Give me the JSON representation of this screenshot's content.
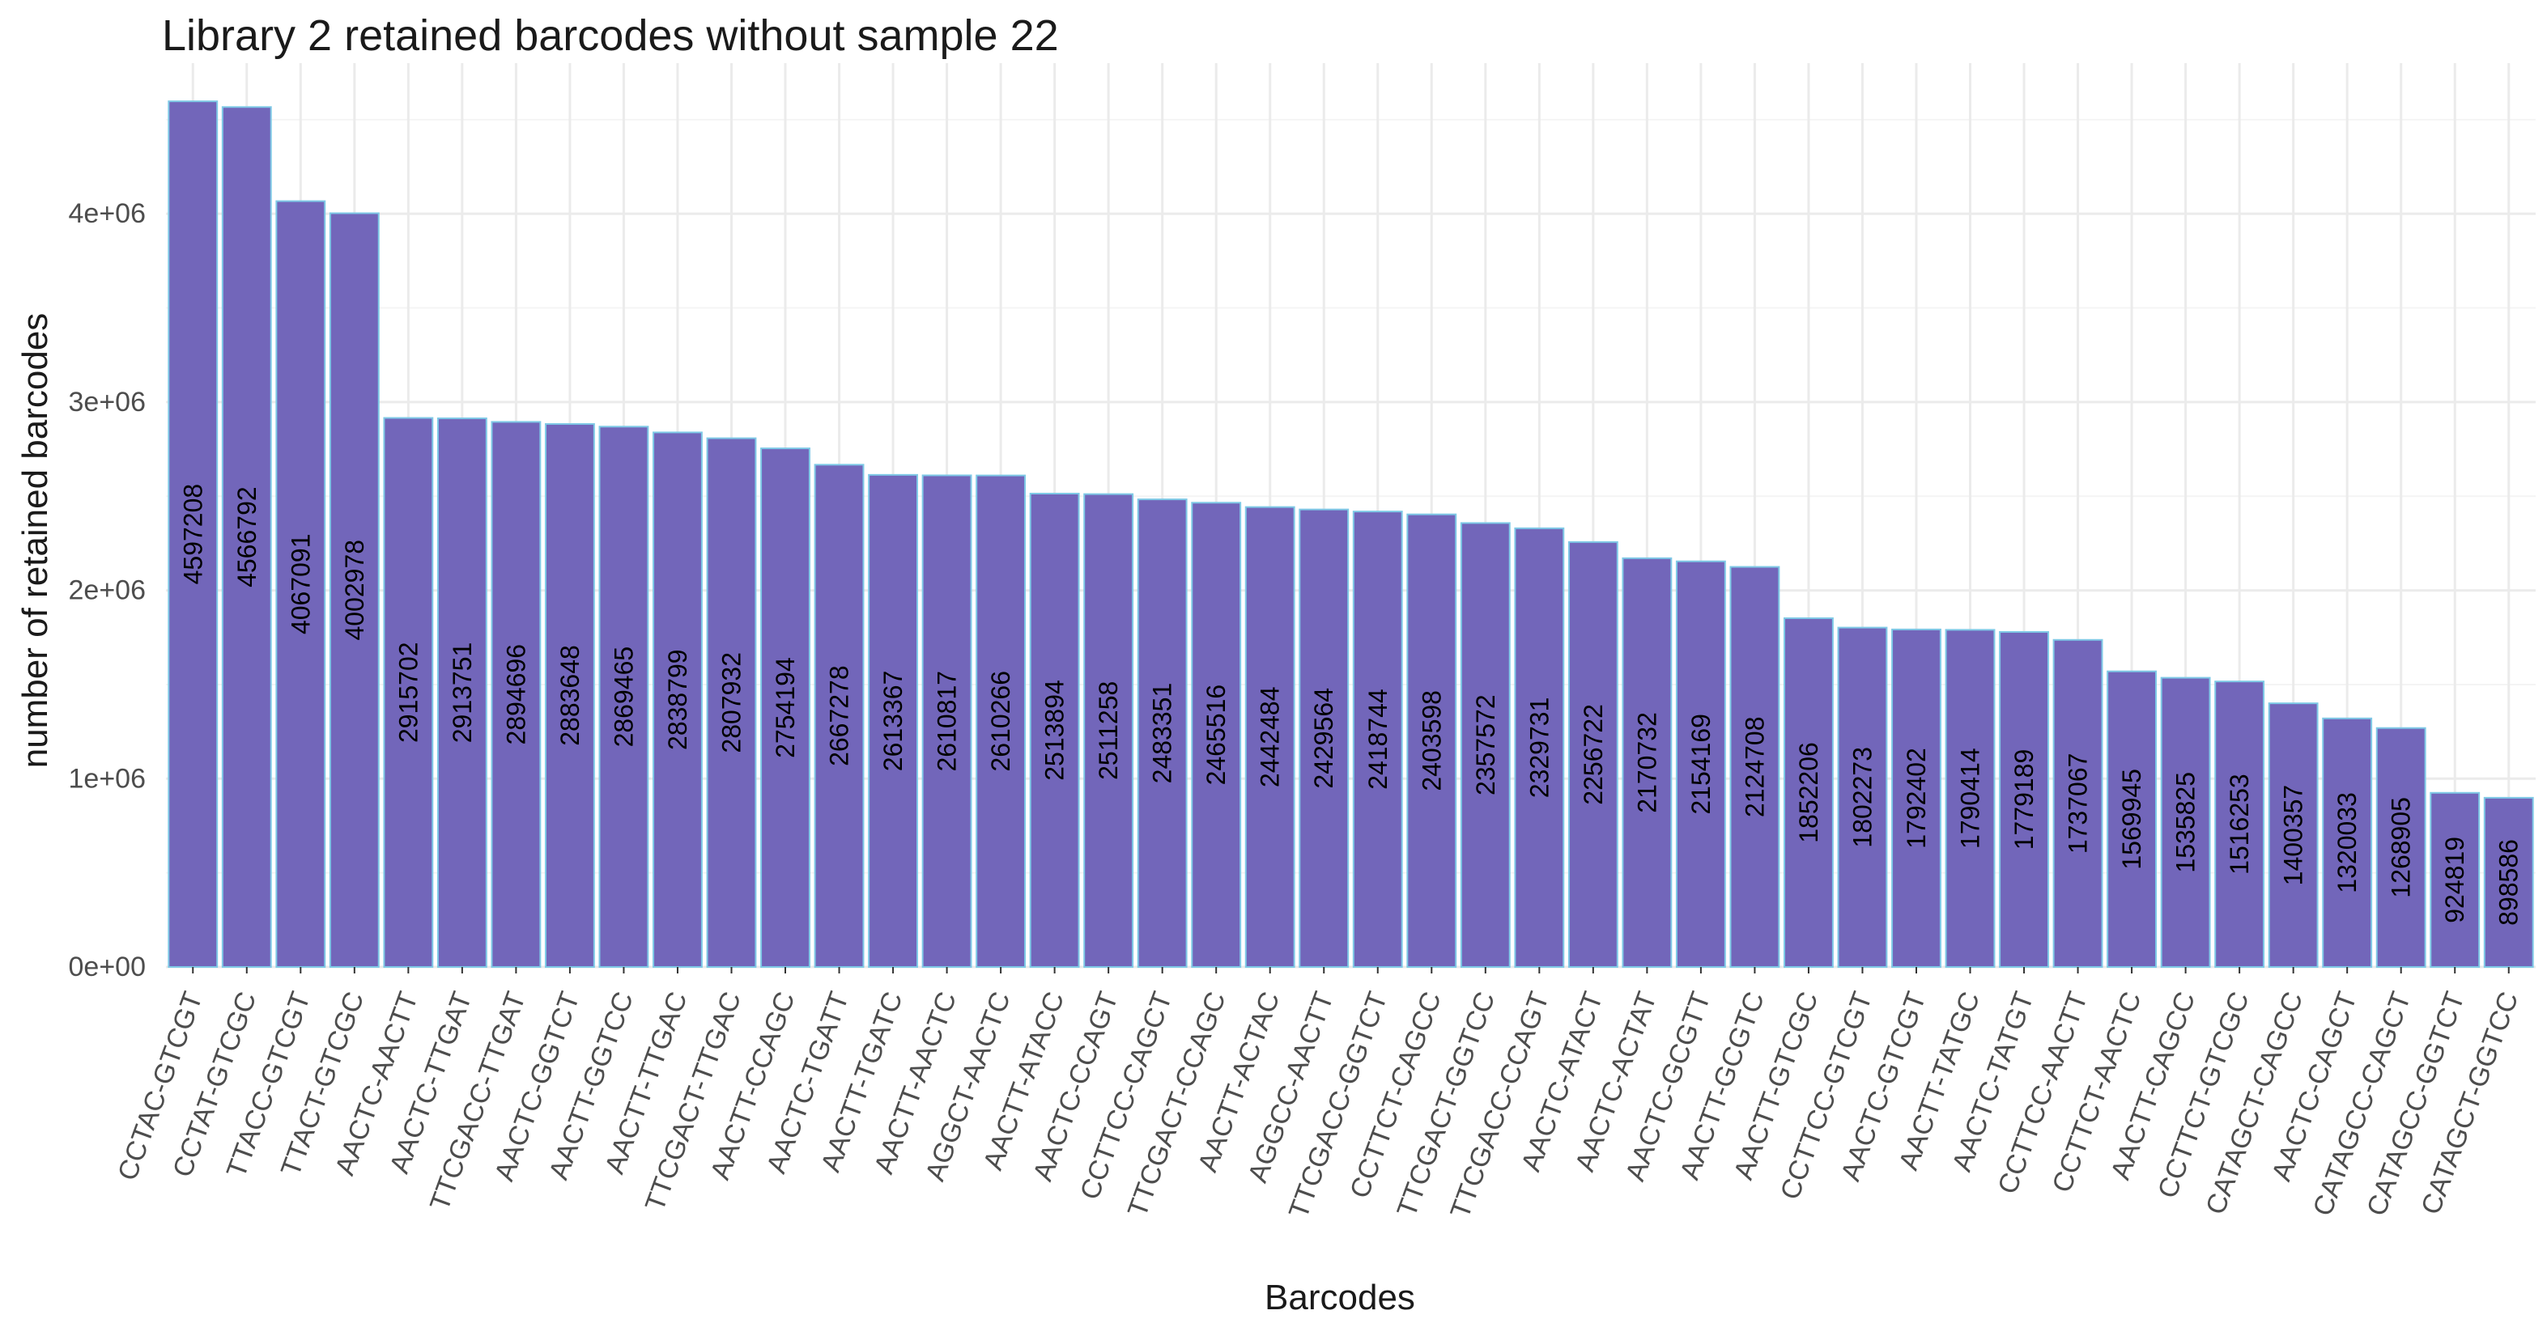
{
  "colors": {
    "bar_fill": "#7266ba",
    "bar_stroke": "#7fc9e6",
    "grid_major": "#ebebeb",
    "grid_minor": "#f4f4f4",
    "text_dark": "#1a1a1a",
    "text_tick": "#4d4d4d",
    "background": "#ffffff"
  },
  "chart_data": {
    "type": "bar",
    "title": "Library 2 retained barcodes without sample 22",
    "xlabel": "Barcodes",
    "ylabel": "number of retained barcodes",
    "ylim": [
      0,
      4800000
    ],
    "yticks": [
      {
        "value": 0,
        "label": "0e+00"
      },
      {
        "value": 1000000,
        "label": "1e+06"
      },
      {
        "value": 2000000,
        "label": "2e+06"
      },
      {
        "value": 3000000,
        "label": "3e+06"
      },
      {
        "value": 4000000,
        "label": "4e+06"
      }
    ],
    "grid": true,
    "legend": "none",
    "categories": [
      "CCTAC-GTCGT",
      "CCTAT-GTCGC",
      "TTACC-GTCGT",
      "TTACT-GTCGC",
      "AACTC-AACTT",
      "AACTC-TTGAT",
      "TTCGACC-TTGAT",
      "AACTC-GGTCT",
      "AACTT-GGTCC",
      "AACTT-TTGAC",
      "TTCGACT-TTGAC",
      "AACTT-CCAGC",
      "AACTC-TGATT",
      "AACTT-TGATC",
      "AACTT-AACTC",
      "AGGCT-AACTC",
      "AACTT-ATACC",
      "AACTC-CCAGT",
      "CCTTCC-CAGCT",
      "TTCGACT-CCAGC",
      "AACTT-ACTAC",
      "AGGCC-AACTT",
      "TTCGACC-GGTCT",
      "CCTTCT-CAGCC",
      "TTCGACT-GGTCC",
      "TTCGACC-CCAGT",
      "AACTC-ATACT",
      "AACTC-ACTAT",
      "AACTC-GCGTT",
      "AACTT-GCGTC",
      "AACTT-GTCGC",
      "CCTTCC-GTCGT",
      "AACTC-GTCGT",
      "AACTT-TATGC",
      "AACTC-TATGT",
      "CCTTCC-AACTT",
      "CCTTCT-AACTC",
      "AACTT-CAGCC",
      "CCTTCT-GTCGC",
      "CATAGCT-CAGCC",
      "AACTC-CAGCT",
      "CATAGCC-CAGCT",
      "CATAGCC-GGTCT",
      "CATAGCT-GGTCC"
    ],
    "values": [
      4597208,
      4566792,
      4067091,
      4002978,
      2915702,
      2913751,
      2894696,
      2883648,
      2869465,
      2838799,
      2807932,
      2754194,
      2667278,
      2613367,
      2610817,
      2610266,
      2513894,
      2511258,
      2483351,
      2465516,
      2442484,
      2429564,
      2418744,
      2403598,
      2357572,
      2329731,
      2256722,
      2170732,
      2154169,
      2124708,
      1852206,
      1802273,
      1792402,
      1790414,
      1779189,
      1737067,
      1569945,
      1535825,
      1516253,
      1400357,
      1320033,
      1268905,
      924819,
      898586
    ],
    "data_labels": [
      "4597208",
      "4566792",
      "4067091",
      "4002978",
      "2915702",
      "2913751",
      "2894696",
      "2883648",
      "2869465",
      "2838799",
      "2807932",
      "2754194",
      "2667278",
      "2613367",
      "2610817",
      "2610266",
      "2513894",
      "2511258",
      "2483351",
      "2465516",
      "2442484",
      "2429564",
      "2418744",
      "2403598",
      "2357572",
      "2329731",
      "2256722",
      "2170732",
      "2154169",
      "2124708",
      "1852206",
      "1802273",
      "1792402",
      "1790414",
      "1779189",
      "1737067",
      "1569945",
      "1535825",
      "1516253",
      "1400357",
      "1320033",
      "1268905",
      "924819",
      "898586"
    ]
  }
}
